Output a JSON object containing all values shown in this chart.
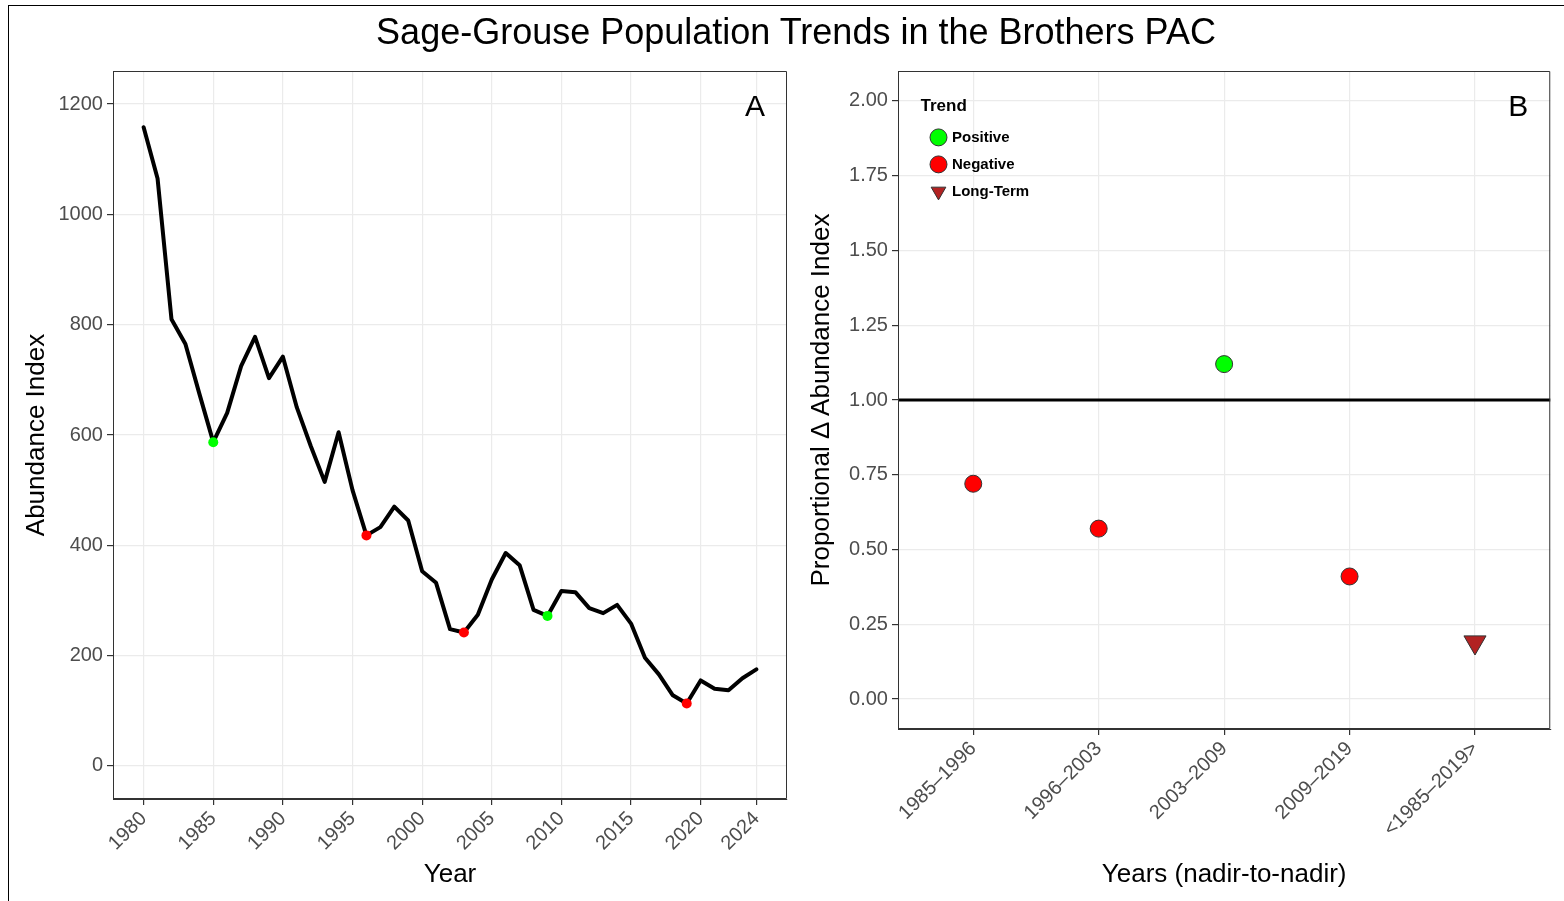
{
  "chart_data": [
    {
      "type": "line",
      "title": "Sage-Grouse Population Trends in the Brothers PAC",
      "xlabel": "Year",
      "ylabel": "Abundance Index",
      "x": [
        1980,
        1981,
        1982,
        1983,
        1984,
        1985,
        1986,
        1987,
        1988,
        1989,
        1990,
        1991,
        1992,
        1993,
        1994,
        1995,
        1996,
        1997,
        1998,
        1999,
        2000,
        2001,
        2002,
        2003,
        2004,
        2005,
        2006,
        2007,
        2008,
        2009,
        2010,
        2011,
        2012,
        2013,
        2014,
        2015,
        2016,
        2017,
        2018,
        2019,
        2020,
        2021,
        2022,
        2023,
        2024
      ],
      "series": [
        {
          "type": "line",
          "color": "#000000",
          "marker": "none",
          "values": [
            1158,
            1065,
            810,
            765,
            675,
            587,
            640,
            725,
            778,
            703,
            742,
            650,
            580,
            515,
            605,
            500,
            418,
            433,
            470,
            445,
            353,
            332,
            248,
            242,
            274,
            338,
            386,
            364,
            283,
            272,
            317,
            315,
            286,
            277,
            292,
            258,
            196,
            166,
            128,
            113,
            155,
            140,
            137,
            159,
            175
          ]
        },
        {
          "type": "scatter",
          "marker": "circle",
          "x": [
            1985,
            1996,
            2003,
            2009,
            2019
          ],
          "values": [
            587,
            418,
            242,
            272,
            113
          ],
          "colors": [
            "#00ff00",
            "#ff0000",
            "#ff0000",
            "#00ff00",
            "#ff0000"
          ]
        }
      ],
      "xlim": [
        1977.8,
        2026.2
      ],
      "xticks": [
        1980,
        1985,
        1990,
        1995,
        2000,
        2005,
        2010,
        2015,
        2020,
        2024
      ],
      "ylim": [
        -60,
        1260
      ],
      "yticks": [
        0,
        200,
        400,
        600,
        800,
        1000,
        1200
      ],
      "grid": true,
      "annotations": [
        "A"
      ]
    },
    {
      "type": "scatter",
      "xlabel": "Years (nadir-to-nadir)",
      "ylabel": "Proportional Δ Abundance Index",
      "categories": [
        "1985–1996",
        "1996–2003",
        "2003–2009",
        "2009–2019",
        "<1985–2019>"
      ],
      "series": [
        {
          "name": "Positive",
          "color": "#00ff00",
          "marker": "circle",
          "values": [
            null,
            null,
            1.12,
            null,
            null
          ]
        },
        {
          "name": "Negative",
          "color": "#ff0000",
          "marker": "circle",
          "values": [
            0.72,
            0.57,
            null,
            0.41,
            null
          ]
        },
        {
          "name": "Long-Term",
          "color": "#b22222",
          "marker": "triangle",
          "values": [
            null,
            null,
            null,
            null,
            0.19
          ]
        }
      ],
      "ylim": [
        -0.1,
        2.1
      ],
      "yticks": [
        {
          "value": 0,
          "label": "0.00"
        },
        {
          "value": 0.25,
          "label": "0.25"
        },
        {
          "value": 0.5,
          "label": "0.50"
        },
        {
          "value": 0.75,
          "label": "0.75"
        },
        {
          "value": 1,
          "label": "1.00"
        },
        {
          "value": 1.25,
          "label": "1.25"
        },
        {
          "value": 1.5,
          "label": "1.50"
        },
        {
          "value": 1.75,
          "label": "1.75"
        },
        {
          "value": 2,
          "label": "2.00"
        }
      ],
      "ref_lines": [
        {
          "axis": "y",
          "value": 1,
          "color": "#000000"
        }
      ],
      "legend": "top left",
      "legend_title": "Trend",
      "grid": true,
      "annotations": [
        "B"
      ]
    }
  ]
}
